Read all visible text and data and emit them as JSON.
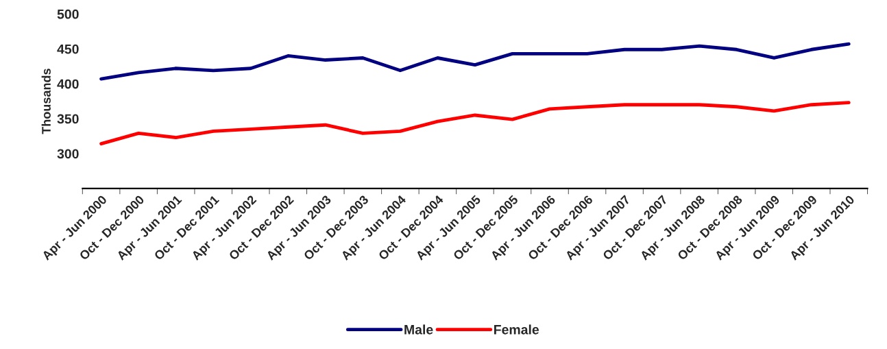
{
  "chart_data": {
    "type": "line",
    "ylabel": "Thousands",
    "categories": [
      "Apr - Jun 2000",
      "Oct - Dec 2000",
      "Apr - Jun 2001",
      "Oct - Dec 2001",
      "Apr - Jun 2002",
      "Oct - Dec 2002",
      "Apr - Jun 2003",
      "Oct - Dec 2003",
      "Apr - Jun 2004",
      "Oct - Dec 2004",
      "Apr - Jun 2005",
      "Oct - Dec 2005",
      "Apr - Jun 2006",
      "Oct - Dec 2006",
      "Apr - Jun 2007",
      "Oct - Dec 2007",
      "Apr - Jun 2008",
      "Oct - Dec 2008",
      "Apr - Jun 2009",
      "Oct - Dec 2009",
      "Apr - Jun 2010"
    ],
    "series": [
      {
        "name": "Male",
        "color": "#000080",
        "values": [
          407,
          416,
          422,
          419,
          422,
          440,
          434,
          437,
          419,
          437,
          427,
          443,
          443,
          443,
          449,
          449,
          454,
          449,
          437,
          449,
          457
        ]
      },
      {
        "name": "Female",
        "color": "#ff0000",
        "values": [
          314,
          329,
          323,
          332,
          335,
          338,
          341,
          329,
          332,
          346,
          355,
          349,
          364,
          367,
          370,
          370,
          370,
          367,
          361,
          370,
          373
        ]
      }
    ],
    "ylim": [
      250,
      500
    ],
    "yticks": [
      300,
      350,
      400,
      450,
      500
    ],
    "grid": false,
    "legend": "bottom",
    "marker": "none",
    "line_style": "solid"
  }
}
